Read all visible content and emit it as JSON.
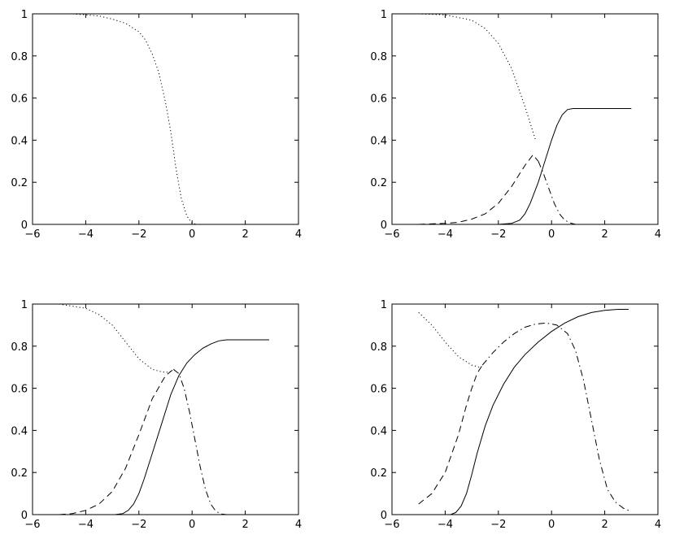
{
  "chart_data": [
    {
      "type": "line",
      "xlim": [
        -6,
        4
      ],
      "ylim": [
        0,
        1
      ],
      "xticks": [
        "−6",
        "−4",
        "−2",
        "0",
        "2",
        "4"
      ],
      "yticks": [
        "0",
        "0.2",
        "0.4",
        "0.6",
        "0.8",
        "1"
      ],
      "grid": false,
      "series": [
        {
          "style": "dotted",
          "x": [
            -5.0,
            -4.5,
            -4.0,
            -3.5,
            -3.0,
            -2.5,
            -2.0,
            -1.75,
            -1.5,
            -1.25,
            -1.0,
            -0.8,
            -0.6,
            -0.4,
            -0.2,
            0.0,
            0.2
          ],
          "y": [
            1.0,
            1.0,
            0.995,
            0.99,
            0.975,
            0.955,
            0.915,
            0.875,
            0.81,
            0.72,
            0.58,
            0.44,
            0.26,
            0.12,
            0.04,
            0.005,
            0.0
          ]
        }
      ]
    },
    {
      "type": "line",
      "xlim": [
        -6,
        4
      ],
      "ylim": [
        0,
        1
      ],
      "xticks": [
        "−6",
        "−4",
        "−2",
        "0",
        "2",
        "4"
      ],
      "yticks": [
        "0",
        "0.2",
        "0.4",
        "0.6",
        "0.8",
        "1"
      ],
      "grid": false,
      "series": [
        {
          "style": "dotted",
          "x": [
            -5.0,
            -4.0,
            -3.0,
            -2.5,
            -2.0,
            -1.5,
            -1.0,
            -0.6
          ],
          "y": [
            1.0,
            0.995,
            0.97,
            0.93,
            0.86,
            0.74,
            0.56,
            0.4
          ]
        },
        {
          "style": "dashed",
          "x": [
            -5.0,
            -4.0,
            -3.5,
            -3.0,
            -2.5,
            -2.0,
            -1.5,
            -1.0,
            -0.7,
            -0.5
          ],
          "y": [
            0.0,
            0.005,
            0.01,
            0.025,
            0.05,
            0.1,
            0.18,
            0.28,
            0.33,
            0.3
          ]
        },
        {
          "style": "dashdot",
          "x": [
            -0.5,
            -0.3,
            -0.1,
            0.1,
            0.3,
            0.5,
            0.7,
            0.9,
            1.0
          ],
          "y": [
            0.3,
            0.24,
            0.17,
            0.1,
            0.05,
            0.02,
            0.007,
            0.0,
            0.0
          ]
        },
        {
          "style": "solid",
          "x": [
            -2.0,
            -1.5,
            -1.2,
            -1.0,
            -0.8,
            -0.5,
            -0.3,
            0.0,
            0.2,
            0.4,
            0.6,
            0.8,
            1.0,
            2.0,
            3.0
          ],
          "y": [
            0.0,
            0.005,
            0.02,
            0.05,
            0.1,
            0.2,
            0.28,
            0.4,
            0.47,
            0.52,
            0.545,
            0.55,
            0.55,
            0.55,
            0.55
          ]
        }
      ]
    },
    {
      "type": "line",
      "xlim": [
        -6,
        4
      ],
      "ylim": [
        0,
        1
      ],
      "xticks": [
        "−6",
        "−4",
        "−2",
        "0",
        "2",
        "4"
      ],
      "yticks": [
        "0",
        "0.2",
        "0.4",
        "0.6",
        "0.8",
        "1"
      ],
      "grid": false,
      "series": [
        {
          "style": "dotted",
          "x": [
            -5.0,
            -4.5,
            -4.0,
            -3.5,
            -3.0,
            -2.5,
            -2.0,
            -1.5,
            -1.2,
            -1.0,
            -0.8
          ],
          "y": [
            1.0,
            0.99,
            0.98,
            0.95,
            0.9,
            0.82,
            0.74,
            0.69,
            0.68,
            0.675,
            0.68
          ]
        },
        {
          "style": "dashed",
          "x": [
            -5.0,
            -4.5,
            -4.0,
            -3.5,
            -3.0,
            -2.5,
            -2.0,
            -1.5,
            -1.0,
            -0.7
          ],
          "y": [
            0.0,
            0.005,
            0.02,
            0.05,
            0.11,
            0.22,
            0.38,
            0.55,
            0.66,
            0.69
          ]
        },
        {
          "style": "dashdot",
          "x": [
            -0.7,
            -0.5,
            -0.3,
            -0.1,
            0.1,
            0.3,
            0.5,
            0.7,
            0.9,
            1.1,
            1.3
          ],
          "y": [
            0.69,
            0.67,
            0.6,
            0.49,
            0.36,
            0.23,
            0.12,
            0.05,
            0.015,
            0.003,
            0.0
          ]
        },
        {
          "style": "solid",
          "x": [
            -2.9,
            -2.6,
            -2.4,
            -2.2,
            -2.0,
            -1.8,
            -1.5,
            -1.2,
            -1.0,
            -0.8,
            -0.5,
            -0.2,
            0.1,
            0.4,
            0.7,
            1.0,
            1.3,
            1.6,
            2.0,
            2.9
          ],
          "y": [
            0.0,
            0.005,
            0.02,
            0.05,
            0.1,
            0.17,
            0.29,
            0.41,
            0.49,
            0.57,
            0.66,
            0.72,
            0.76,
            0.79,
            0.81,
            0.825,
            0.83,
            0.83,
            0.83,
            0.83
          ]
        }
      ]
    },
    {
      "type": "line",
      "xlim": [
        -6,
        4
      ],
      "ylim": [
        0,
        1
      ],
      "xticks": [
        "−6",
        "−4",
        "−2",
        "0",
        "2",
        "4"
      ],
      "yticks": [
        "0",
        "0.2",
        "0.4",
        "0.6",
        "0.8",
        "1"
      ],
      "grid": false,
      "series": [
        {
          "style": "dotted",
          "x": [
            -5.0,
            -4.5,
            -4.0,
            -3.5,
            -3.0,
            -2.7
          ],
          "y": [
            0.96,
            0.9,
            0.82,
            0.75,
            0.71,
            0.7
          ]
        },
        {
          "style": "dashed",
          "x": [
            -5.0,
            -4.5,
            -4.0,
            -3.5,
            -3.2,
            -3.0,
            -2.8,
            -2.6
          ],
          "y": [
            0.05,
            0.1,
            0.2,
            0.38,
            0.52,
            0.6,
            0.67,
            0.71
          ]
        },
        {
          "style": "dashdot",
          "x": [
            -2.6,
            -2.2,
            -1.8,
            -1.4,
            -1.0,
            -0.6,
            -0.2,
            0.2,
            0.6,
            0.9,
            1.2,
            1.5,
            1.8,
            2.1,
            2.4,
            2.7,
            2.9
          ],
          "y": [
            0.71,
            0.77,
            0.82,
            0.86,
            0.89,
            0.905,
            0.91,
            0.9,
            0.86,
            0.78,
            0.64,
            0.45,
            0.26,
            0.12,
            0.06,
            0.03,
            0.02
          ]
        },
        {
          "style": "solid",
          "x": [
            -3.8,
            -3.6,
            -3.4,
            -3.2,
            -3.0,
            -2.8,
            -2.5,
            -2.2,
            -1.8,
            -1.4,
            -1.0,
            -0.5,
            0.0,
            0.5,
            1.0,
            1.5,
            2.0,
            2.5,
            2.9
          ],
          "y": [
            0.0,
            0.01,
            0.04,
            0.1,
            0.19,
            0.29,
            0.42,
            0.52,
            0.62,
            0.7,
            0.76,
            0.82,
            0.87,
            0.91,
            0.94,
            0.96,
            0.97,
            0.975,
            0.975
          ]
        }
      ]
    }
  ]
}
